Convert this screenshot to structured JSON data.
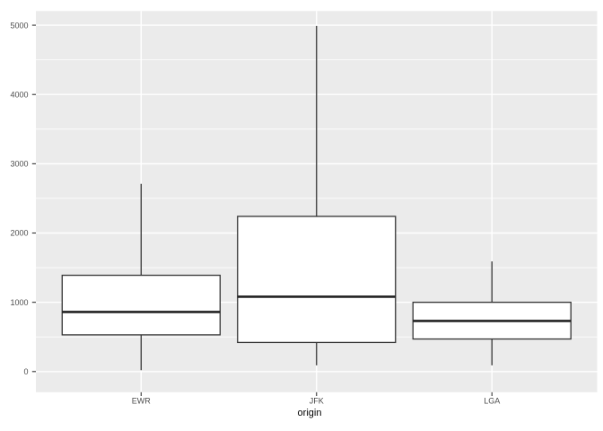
{
  "figure": {
    "kind": "ggplot-style boxplot",
    "x_axis_title": "origin",
    "y_axis_title": ""
  },
  "colors": {
    "background": "#FFFFFF",
    "panel_background": "#EBEBEB",
    "grid_major": "#FFFFFF",
    "grid_minor": "#FFFFFF",
    "box_fill": "#FFFFFF",
    "box_stroke": "#333333",
    "median_stroke": "#222222",
    "tick_mark": "#333333",
    "tick_label": "#4D4D4D",
    "axis_title": "#000000"
  },
  "chart_data": {
    "type": "boxplot",
    "title": "",
    "xlabel": "origin",
    "ylabel": "",
    "categories": [
      "EWR",
      "JFK",
      "LGA"
    ],
    "y_ticks": [
      0,
      1000,
      2000,
      3000,
      4000,
      5000
    ],
    "y_minor_ticks": [
      500,
      1500,
      2500,
      3500,
      4500
    ],
    "ylim": [
      -300,
      5210
    ],
    "grid": "major and minor horizontal white lines, major vertical white line at each category, on grey panel",
    "legend": "none",
    "outliers_shown": false,
    "series": [
      {
        "label": "EWR",
        "whisker_low": 20,
        "q1": 530,
        "median": 860,
        "q3": 1390,
        "whisker_high": 2710
      },
      {
        "label": "JFK",
        "whisker_low": 90,
        "q1": 420,
        "median": 1080,
        "q3": 2240,
        "whisker_high": 4990
      },
      {
        "label": "LGA",
        "whisker_low": 90,
        "q1": 470,
        "median": 730,
        "q3": 1000,
        "whisker_high": 1590
      }
    ]
  }
}
